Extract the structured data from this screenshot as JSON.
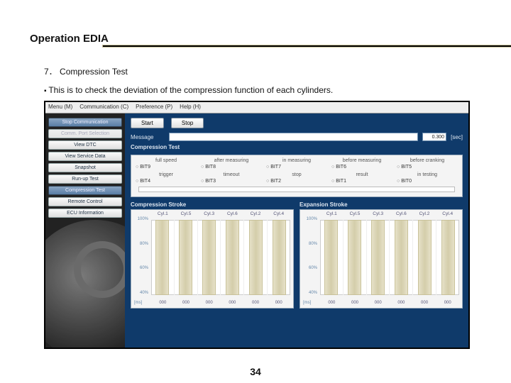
{
  "header": {
    "title": "Operation EDIA"
  },
  "section": {
    "number": "7．",
    "heading": "Compression Test",
    "desc": "This is to check the deviation of the compression function of each cylinders."
  },
  "page_number": "34",
  "app": {
    "menu": [
      "Menu (M)",
      "Communication (C)",
      "Preference (P)",
      "Help (H)"
    ],
    "sidebar": [
      {
        "label": "Stop Communication",
        "state": "active"
      },
      {
        "label": "Comm. Port Selection",
        "state": "dis"
      },
      {
        "label": "View DTC",
        "state": ""
      },
      {
        "label": "View Service Data",
        "state": ""
      },
      {
        "label": "Snapshot",
        "state": ""
      },
      {
        "label": "Run-up Test",
        "state": ""
      },
      {
        "label": "Compression Test",
        "state": "active"
      },
      {
        "label": "Remote Control",
        "state": ""
      },
      {
        "label": "ECU Information",
        "state": ""
      }
    ],
    "buttons": {
      "start": "Start",
      "stop": "Stop"
    },
    "message": {
      "label": "Message",
      "sec_value": "0.300",
      "sec_unit": "[sec]"
    },
    "comp_title": "Compression Test",
    "status": {
      "row1": [
        {
          "h": "full speed",
          "v": "BIT9"
        },
        {
          "h": "after measuring",
          "v": "BIT8"
        },
        {
          "h": "in measuring",
          "v": "BIT7"
        },
        {
          "h": "before measuring",
          "v": "BIT6"
        },
        {
          "h": "before cranking",
          "v": "BIT5"
        }
      ],
      "row2": [
        {
          "h": "trigger",
          "v": "BIT4"
        },
        {
          "h": "timeout",
          "v": "BIT3"
        },
        {
          "h": "stop",
          "v": "BIT2"
        },
        {
          "h": "result",
          "v": "BIT1"
        },
        {
          "h": "in testing",
          "v": "BIT0"
        }
      ]
    },
    "charts": {
      "left": {
        "title": "Compression Stroke"
      },
      "right": {
        "title": "Expansion Stroke"
      },
      "yticks": [
        "100%",
        "80%",
        "60%",
        "40%"
      ],
      "yunit": "[ms]",
      "cyl_labels": [
        "Cyl.1",
        "Cyl.5",
        "Cyl.3",
        "Cyl.6",
        "Cyl.2",
        "Cyl.4"
      ],
      "x_values": [
        "000",
        "000",
        "000",
        "000",
        "000",
        "000"
      ],
      "bar_heights_pct": [
        100,
        100,
        100,
        100,
        100,
        100
      ],
      "colors": {
        "panel_bg": "#0f3a6a",
        "card_bg": "#f4f4f4",
        "bar_fill": "#e0dabb",
        "bar_border": "#c9c29a"
      }
    }
  }
}
